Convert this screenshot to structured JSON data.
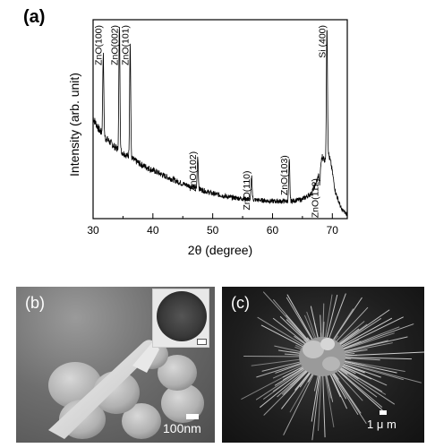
{
  "panel_a_label": "(a)",
  "chart_data": {
    "type": "line",
    "title": "",
    "xlabel": "2θ (degree)",
    "ylabel": "Intensity (arb. unit)",
    "xlim": [
      30,
      72.5
    ],
    "xticks": [
      30,
      40,
      50,
      60,
      70
    ],
    "grid": false,
    "series_color": "#000000",
    "baseline_anchors": [
      [
        30,
        0.52
      ],
      [
        31,
        0.46
      ],
      [
        32,
        0.42
      ],
      [
        33,
        0.39
      ],
      [
        34,
        0.36
      ],
      [
        35,
        0.34
      ],
      [
        36,
        0.32
      ],
      [
        37,
        0.3
      ],
      [
        38,
        0.28
      ],
      [
        40,
        0.25
      ],
      [
        42,
        0.22
      ],
      [
        45,
        0.18
      ],
      [
        48,
        0.15
      ],
      [
        50,
        0.13
      ],
      [
        53,
        0.11
      ],
      [
        56,
        0.1
      ],
      [
        60,
        0.09
      ],
      [
        63,
        0.09
      ],
      [
        65,
        0.1
      ],
      [
        66.5,
        0.13
      ],
      [
        67.5,
        0.2
      ],
      [
        68.3,
        0.32
      ],
      [
        68.8,
        0.3
      ],
      [
        69.3,
        0.34
      ],
      [
        69.8,
        0.28
      ],
      [
        70.5,
        0.14
      ],
      [
        71.5,
        0.05
      ],
      [
        72.5,
        0.02
      ]
    ],
    "peaks": [
      {
        "x": 31.7,
        "height": 0.85,
        "label": "ZnO(100)"
      },
      {
        "x": 34.4,
        "height": 1.0,
        "label": "ZnO(002)"
      },
      {
        "x": 36.2,
        "height": 0.9,
        "label": "ZnO(101)"
      },
      {
        "x": 47.5,
        "height": 0.32,
        "label": "ZnO(102)"
      },
      {
        "x": 56.5,
        "height": 0.22,
        "label": "ZnO(110)"
      },
      {
        "x": 62.8,
        "height": 0.3,
        "label": "ZnO(103)"
      },
      {
        "x": 67.9,
        "height": 0.18,
        "label": "ZnO(112)"
      },
      {
        "x": 69.1,
        "height": 1.0,
        "label": "Si (400)"
      }
    ]
  },
  "panel_b": {
    "tag": "(b)",
    "scale_label": "100nm"
  },
  "panel_c": {
    "tag": "(c)",
    "scale_label": "1 μ m"
  }
}
